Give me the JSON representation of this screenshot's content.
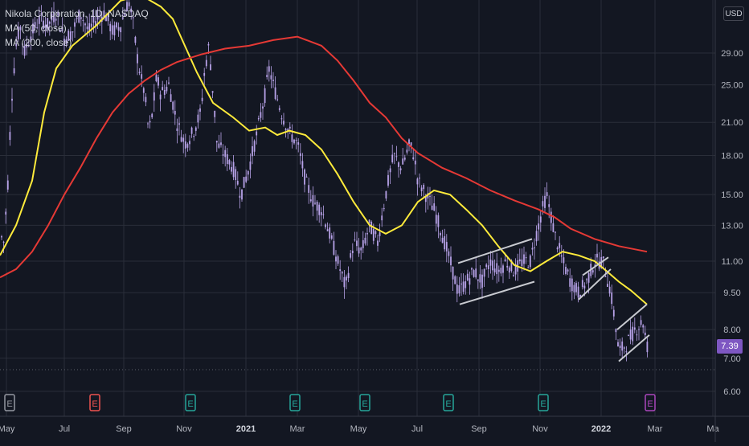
{
  "legend": {
    "title": "Nikola Corporation, 1D, NASDAQ",
    "ma50": "MA (50, close)",
    "ma200": "MA (200, close)"
  },
  "currency_button": "USD",
  "last_price": "7.39",
  "colors": {
    "background": "#131722",
    "grid": "#2a2e39",
    "candles": "#b7a2e8",
    "ma50": "#ffeb3b",
    "ma200": "#e53935",
    "trendlines": "#c8cad0",
    "price_tag": "#7e57c2",
    "earnings_green": "#26a69a",
    "earnings_red": "#ef5350",
    "earnings_purple": "#ab47bc"
  },
  "chart_data": {
    "type": "candlestick",
    "y_scale": "log",
    "y_ticks": [
      "29.00",
      "25.00",
      "21.00",
      "18.00",
      "15.00",
      "13.00",
      "11.00",
      "9.50",
      "8.00",
      "7.00",
      "6.00"
    ],
    "y_tick_values": [
      29,
      25,
      21,
      18,
      15,
      13,
      11,
      9.5,
      8,
      7,
      6
    ],
    "x_ticks": [
      {
        "label": "May",
        "year": false
      },
      {
        "label": "Jul",
        "year": false
      },
      {
        "label": "Sep",
        "year": false
      },
      {
        "label": "Nov",
        "year": false
      },
      {
        "label": "2021",
        "year": true
      },
      {
        "label": "Mar",
        "year": false
      },
      {
        "label": "May",
        "year": false
      },
      {
        "label": "Jul",
        "year": false
      },
      {
        "label": "Sep",
        "year": false
      },
      {
        "label": "Nov",
        "year": false
      },
      {
        "label": "2022",
        "year": true
      },
      {
        "label": "Mar",
        "year": false
      },
      {
        "label": "Ma",
        "year": false
      }
    ],
    "last_close": 7.39,
    "price_path": [
      [
        0,
        12.5
      ],
      [
        5,
        12
      ],
      [
        10,
        16
      ],
      [
        15,
        24
      ],
      [
        20,
        30
      ],
      [
        25,
        33
      ],
      [
        30,
        29
      ],
      [
        40,
        32
      ],
      [
        50,
        34
      ],
      [
        60,
        33
      ],
      [
        70,
        35
      ],
      [
        80,
        31
      ],
      [
        90,
        32
      ],
      [
        100,
        35
      ],
      [
        110,
        32
      ],
      [
        120,
        34
      ],
      [
        130,
        35
      ],
      [
        140,
        32
      ],
      [
        150,
        33
      ],
      [
        160,
        37
      ],
      [
        165,
        34
      ],
      [
        170,
        29
      ],
      [
        175,
        26
      ],
      [
        180,
        24
      ],
      [
        185,
        20
      ],
      [
        190,
        22
      ],
      [
        195,
        26
      ],
      [
        200,
        24
      ],
      [
        210,
        25
      ],
      [
        220,
        21
      ],
      [
        230,
        19
      ],
      [
        240,
        20
      ],
      [
        250,
        22
      ],
      [
        255,
        27
      ],
      [
        260,
        30
      ],
      [
        265,
        24
      ],
      [
        270,
        19
      ],
      [
        280,
        18
      ],
      [
        290,
        17
      ],
      [
        300,
        15
      ],
      [
        310,
        17
      ],
      [
        320,
        20
      ],
      [
        330,
        24
      ],
      [
        335,
        27
      ],
      [
        340,
        25
      ],
      [
        350,
        22
      ],
      [
        360,
        20
      ],
      [
        370,
        19
      ],
      [
        380,
        16
      ],
      [
        390,
        14.5
      ],
      [
        400,
        14
      ],
      [
        410,
        12.5
      ],
      [
        420,
        11
      ],
      [
        430,
        9.7
      ],
      [
        440,
        12
      ],
      [
        450,
        11.5
      ],
      [
        460,
        13
      ],
      [
        470,
        12
      ],
      [
        480,
        15
      ],
      [
        490,
        18
      ],
      [
        500,
        17
      ],
      [
        510,
        19
      ],
      [
        515,
        18
      ],
      [
        520,
        16
      ],
      [
        530,
        15
      ],
      [
        540,
        14
      ],
      [
        550,
        12.5
      ],
      [
        560,
        11
      ],
      [
        570,
        9.5
      ],
      [
        580,
        10
      ],
      [
        590,
        10.5
      ],
      [
        600,
        10
      ],
      [
        610,
        11
      ],
      [
        620,
        10.5
      ],
      [
        630,
        11
      ],
      [
        640,
        10.5
      ],
      [
        650,
        11
      ],
      [
        660,
        11
      ],
      [
        670,
        13
      ],
      [
        680,
        15
      ],
      [
        690,
        12.5
      ],
      [
        700,
        11
      ],
      [
        710,
        10
      ],
      [
        720,
        9.5
      ],
      [
        730,
        10
      ],
      [
        740,
        11
      ],
      [
        750,
        11
      ],
      [
        760,
        9.5
      ],
      [
        770,
        7.2
      ],
      [
        780,
        7.5
      ],
      [
        790,
        8
      ],
      [
        800,
        8.3
      ],
      [
        805,
        7.4
      ]
    ],
    "series": [
      {
        "name": "MA (50, close)",
        "points": [
          [
            0,
            11.3
          ],
          [
            20,
            13
          ],
          [
            40,
            16
          ],
          [
            55,
            22
          ],
          [
            70,
            27
          ],
          [
            90,
            30
          ],
          [
            120,
            33
          ],
          [
            150,
            37
          ],
          [
            175,
            38
          ],
          [
            200,
            36
          ],
          [
            215,
            34
          ],
          [
            230,
            30
          ],
          [
            245,
            26.5
          ],
          [
            265,
            23
          ],
          [
            290,
            21.5
          ],
          [
            310,
            20.2
          ],
          [
            330,
            20.5
          ],
          [
            345,
            19.8
          ],
          [
            360,
            20.2
          ],
          [
            380,
            19.8
          ],
          [
            400,
            18.5
          ],
          [
            420,
            16.5
          ],
          [
            440,
            14.5
          ],
          [
            460,
            13
          ],
          [
            480,
            12.5
          ],
          [
            500,
            13
          ],
          [
            520,
            14.5
          ],
          [
            540,
            15.3
          ],
          [
            560,
            15
          ],
          [
            580,
            14
          ],
          [
            600,
            13
          ],
          [
            620,
            11.8
          ],
          [
            640,
            10.8
          ],
          [
            660,
            10.5
          ],
          [
            680,
            11
          ],
          [
            700,
            11.5
          ],
          [
            720,
            11.3
          ],
          [
            740,
            11
          ],
          [
            755,
            10.5
          ],
          [
            770,
            10
          ],
          [
            785,
            9.6
          ],
          [
            805,
            9
          ]
        ]
      },
      {
        "name": "MA (200, close)",
        "points": [
          [
            0,
            10.2
          ],
          [
            20,
            10.6
          ],
          [
            40,
            11.5
          ],
          [
            60,
            13
          ],
          [
            80,
            15
          ],
          [
            100,
            17
          ],
          [
            120,
            19.5
          ],
          [
            140,
            22
          ],
          [
            160,
            24
          ],
          [
            180,
            25.5
          ],
          [
            200,
            26.8
          ],
          [
            220,
            27.8
          ],
          [
            250,
            28.8
          ],
          [
            280,
            29.6
          ],
          [
            310,
            30
          ],
          [
            340,
            30.8
          ],
          [
            370,
            31.3
          ],
          [
            400,
            30
          ],
          [
            420,
            28
          ],
          [
            440,
            25.5
          ],
          [
            460,
            23
          ],
          [
            480,
            21.5
          ],
          [
            500,
            19.5
          ],
          [
            520,
            18.2
          ],
          [
            550,
            17
          ],
          [
            580,
            16.2
          ],
          [
            610,
            15.3
          ],
          [
            640,
            14.6
          ],
          [
            670,
            14
          ],
          [
            690,
            13.5
          ],
          [
            710,
            12.8
          ],
          [
            740,
            12.2
          ],
          [
            770,
            11.8
          ],
          [
            805,
            11.5
          ]
        ]
      }
    ],
    "trendlines": [
      [
        [
          570,
          10.9
        ],
        [
          662,
          12.2
        ]
      ],
      [
        [
          572,
          9.0
        ],
        [
          665,
          10.0
        ]
      ],
      [
        [
          720,
          9.2
        ],
        [
          760,
          10.6
        ]
      ],
      [
        [
          725,
          10.3
        ],
        [
          757,
          11.2
        ]
      ],
      [
        [
          768,
          8.0
        ],
        [
          805,
          9.0
        ]
      ],
      [
        [
          770,
          6.9
        ],
        [
          808,
          7.8
        ]
      ]
    ],
    "earnings": [
      {
        "x": 12,
        "color": "#9598a1"
      },
      {
        "x": 118,
        "color": "#ef5350"
      },
      {
        "x": 237,
        "color": "#26a69a"
      },
      {
        "x": 367,
        "color": "#26a69a"
      },
      {
        "x": 454,
        "color": "#26a69a"
      },
      {
        "x": 558,
        "color": "#26a69a"
      },
      {
        "x": 676,
        "color": "#26a69a"
      },
      {
        "x": 809,
        "color": "#ab47bc"
      }
    ],
    "earnings_label": "E"
  }
}
